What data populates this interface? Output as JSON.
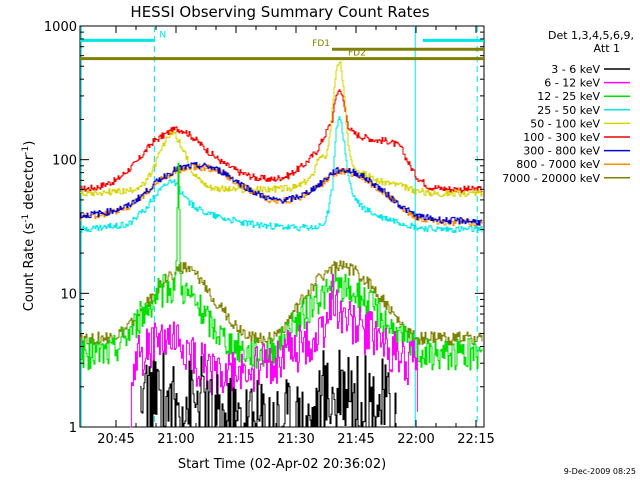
{
  "chart_data": {
    "type": "line",
    "title": "HESSI Observing Summary Count Rates",
    "xlabel": "Start Time (02-Apr-02 20:36:02)",
    "ylabel_main": "Count Rate (s",
    "ylabel_sup1": "-1",
    "ylabel_mid": " detector",
    "ylabel_sup2": "-1",
    "ylabel_end": ")",
    "footer": "9-Dec-2009 08:25",
    "y_scale": "log",
    "xlim_min": [
      36,
      137
    ],
    "ylim": [
      1,
      1000
    ],
    "x_ticks": [
      {
        "label": "20:45",
        "min": 45
      },
      {
        "label": "21:00",
        "min": 60
      },
      {
        "label": "21:15",
        "min": 75
      },
      {
        "label": "21:30",
        "min": 90
      },
      {
        "label": "21:45",
        "min": 105
      },
      {
        "label": "22:00",
        "min": 120
      },
      {
        "label": "22:15",
        "min": 135
      }
    ],
    "y_ticks": [
      {
        "label": "1",
        "value": 1
      },
      {
        "label": "10",
        "value": 10
      },
      {
        "label": "100",
        "value": 100
      },
      {
        "label": "1000",
        "value": 1000
      }
    ],
    "legend": {
      "placement": "right",
      "header1": "Det 1,3,4,5,6,9,",
      "header2": "Att 1",
      "entries": [
        {
          "label": "3 - 6 keV",
          "color": "#000000"
        },
        {
          "label": "6 - 12 keV",
          "color": "#ff00ff"
        },
        {
          "label": "12 - 25 keV",
          "color": "#00dd00"
        },
        {
          "label": "25 - 50 keV",
          "color": "#00e5e5"
        },
        {
          "label": "50 - 100 keV",
          "color": "#d4d400"
        },
        {
          "label": "100 - 300 keV",
          "color": "#ee0000"
        },
        {
          "label": "300 - 800 keV",
          "color": "#0000cc"
        },
        {
          "label": "800 - 7000 keV",
          "color": "#ff8c00"
        },
        {
          "label": "7000 - 20000 keV",
          "color": "#808000"
        }
      ]
    },
    "flags": [
      {
        "label": "N",
        "color": "#00e5e5",
        "segments": [
          [
            36,
            54.6
          ],
          [
            121.7,
            137
          ]
        ],
        "level": 780
      },
      {
        "label": "FD1",
        "color": "#808000",
        "segments": [
          [
            99,
            137
          ]
        ],
        "level": 670
      },
      {
        "label": "FD2",
        "color": "#808000",
        "segments": [
          [
            36,
            137
          ]
        ],
        "level": 570
      }
    ],
    "vlines": [
      {
        "min": 36.3,
        "color": "#00e5e5",
        "style": "solid"
      },
      {
        "min": 54.6,
        "color": "#00e5e5",
        "style": "dashed"
      },
      {
        "min": 119.8,
        "color": "#00e5e5",
        "style": "solid"
      },
      {
        "min": 135.3,
        "color": "#00e5e5",
        "style": "dashed"
      }
    ],
    "series": [
      {
        "name": "100 - 300 keV",
        "color": "#ee0000",
        "x": [
          36,
          40,
          45,
          50,
          54,
          58,
          60,
          62,
          65,
          68,
          72,
          76,
          80,
          84,
          88,
          92,
          95,
          97,
          99,
          100,
          101,
          102,
          103,
          104,
          106,
          108,
          110,
          113,
          116,
          118,
          120,
          123,
          126,
          130,
          133,
          136.5
        ],
        "y": [
          60,
          62,
          70,
          95,
          135,
          160,
          170,
          165,
          140,
          115,
          93,
          80,
          73,
          71,
          76,
          92,
          115,
          150,
          200,
          310,
          340,
          250,
          180,
          160,
          150,
          145,
          140,
          138,
          125,
          95,
          75,
          63,
          61,
          60,
          60,
          60
        ]
      },
      {
        "name": "50 - 100 keV",
        "color": "#d4d400",
        "x": [
          36,
          42,
          48,
          52,
          54,
          56,
          58,
          59,
          60,
          62,
          64,
          66,
          68,
          72,
          78,
          84,
          90,
          94,
          95,
          96,
          97,
          98,
          99,
          100,
          101,
          102,
          103,
          104,
          106,
          110,
          115,
          120,
          125,
          130,
          136.5
        ],
        "y": [
          56,
          57,
          58,
          65,
          82,
          115,
          150,
          162,
          150,
          112,
          82,
          70,
          63,
          60,
          59,
          60,
          62,
          75,
          95,
          110,
          100,
          122,
          240,
          480,
          530,
          290,
          130,
          95,
          80,
          70,
          65,
          58,
          56,
          56,
          56
        ]
      },
      {
        "name": "25 - 50 keV",
        "color": "#00e5e5",
        "x": [
          36,
          42,
          48,
          52,
          55,
          58,
          59,
          60,
          61,
          63,
          66,
          70,
          76,
          82,
          88,
          92,
          95,
          97,
          98,
          99,
          100,
          101,
          102,
          103,
          104,
          106,
          110,
          116,
          120,
          126,
          131,
          136.5
        ],
        "y": [
          30,
          31,
          33,
          42,
          56,
          68,
          72,
          66,
          58,
          48,
          42,
          38,
          34,
          32,
          31,
          31,
          31,
          33,
          42,
          62,
          180,
          205,
          130,
          75,
          55,
          45,
          38,
          34,
          31,
          30,
          30,
          30
        ]
      },
      {
        "name": "800 - 7000 keV",
        "color": "#ff8c00",
        "x": [
          36,
          42,
          48,
          52,
          56,
          60,
          64,
          68,
          72,
          76,
          80,
          84,
          88,
          92,
          96,
          99,
          101,
          103,
          106,
          110,
          114,
          117,
          120,
          124,
          128,
          132,
          136.5
        ],
        "y": [
          37,
          39,
          44,
          55,
          70,
          83,
          88,
          87,
          78,
          65,
          55,
          49,
          49,
          54,
          64,
          78,
          82,
          81,
          75,
          62,
          50,
          42,
          37,
          35,
          34,
          34,
          33
        ]
      },
      {
        "name": "300 - 800 keV",
        "color": "#0000cc",
        "x": [
          36,
          42,
          48,
          52,
          56,
          60,
          64,
          68,
          72,
          76,
          80,
          84,
          88,
          92,
          96,
          99,
          101,
          103,
          106,
          110,
          114,
          117,
          120,
          124,
          128,
          132,
          136.5
        ],
        "y": [
          38,
          40,
          45,
          56,
          72,
          85,
          90,
          89,
          80,
          66,
          56,
          50,
          50,
          55,
          66,
          80,
          84,
          83,
          77,
          64,
          51,
          43,
          38,
          36,
          35,
          35,
          34
        ]
      },
      {
        "name": "7000 - 20000 keV",
        "color": "#808000",
        "x": [
          36,
          44,
          47,
          50,
          53,
          56,
          59,
          61,
          63,
          66,
          69,
          72,
          75,
          78,
          81,
          84,
          87,
          90,
          93,
          96,
          99,
          101,
          103,
          106,
          109,
          112,
          115,
          118,
          121,
          125,
          130,
          136.5
        ],
        "y": [
          4.6,
          4.6,
          5.2,
          6.4,
          8.6,
          11.4,
          14,
          15.6,
          15,
          12.5,
          9.6,
          7.2,
          5.6,
          4.9,
          4.6,
          4.6,
          5.6,
          7.6,
          10.4,
          13.4,
          15.6,
          15.8,
          15.4,
          13.6,
          11.2,
          8.6,
          6.4,
          5,
          4.6,
          4.6,
          4.6,
          4.6
        ]
      },
      {
        "name": "12 - 25 keV",
        "color": "#00dd00",
        "x": [
          36,
          44,
          47,
          50,
          53,
          55,
          57,
          59,
          60,
          60.5,
          61,
          62,
          64,
          66,
          69,
          72,
          75,
          78,
          81,
          84,
          87,
          90,
          93,
          96,
          99,
          101,
          103,
          106,
          109,
          112,
          115,
          118,
          121,
          125,
          130,
          136.5
        ],
        "y": [
          3.5,
          3.6,
          4.6,
          6,
          8,
          9.6,
          10.6,
          11,
          14,
          115,
          12,
          10.4,
          9,
          7.4,
          5.6,
          4.6,
          4,
          3.6,
          3.5,
          3.7,
          4.6,
          6,
          7.8,
          9.4,
          10.6,
          11,
          10.6,
          9.4,
          8,
          6.4,
          5,
          4.2,
          3.6,
          3.5,
          3.5,
          3.5
        ]
      },
      {
        "name": "6 - 12 keV",
        "color": "#ff00ff",
        "x": [
          48.6,
          50,
          53,
          55,
          57,
          59,
          61,
          62,
          63,
          65,
          68,
          71,
          74,
          77,
          80,
          83,
          86,
          89,
          92,
          95,
          97,
          99,
          100,
          101,
          103,
          106,
          109,
          112,
          115,
          118,
          120,
          120.5
        ],
        "y": [
          1.3,
          3.4,
          3.8,
          4.1,
          4.2,
          4.3,
          4.2,
          3.8,
          3.4,
          3,
          2.7,
          2.5,
          2.5,
          2.6,
          2.8,
          3,
          3.3,
          3.7,
          4.1,
          4.6,
          5.5,
          9.5,
          8.5,
          7.5,
          6.5,
          5.5,
          4.8,
          4.1,
          3.5,
          3.1,
          2.9,
          1.3
        ]
      },
      {
        "name": "3 - 6 keV",
        "color": "#000000",
        "x": [
          51,
          52,
          54,
          56,
          58,
          60,
          62,
          64,
          66,
          68,
          69,
          95,
          96,
          97,
          98,
          99,
          100,
          101,
          102,
          103,
          104,
          105,
          106,
          108,
          110,
          112,
          114,
          115
        ],
        "y": [
          1.3,
          1.6,
          1.4,
          1.8,
          1.5,
          1.3,
          1.7,
          1.4,
          1.6,
          1.3,
          1.1,
          1.1,
          1.5,
          1.8,
          1.6,
          1.9,
          1.4,
          2.7,
          1.8,
          2.6,
          1.7,
          1.5,
          1.8,
          1.5,
          1.6,
          1.4,
          1.3,
          1.1
        ]
      }
    ]
  }
}
